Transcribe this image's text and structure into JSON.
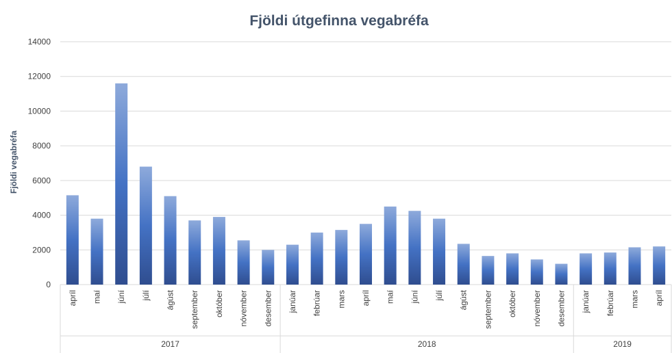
{
  "chart_data": {
    "type": "bar",
    "title": "Fjöldi útgefinna vegabréfa",
    "xlabel": "",
    "ylabel": "Fjöldi vegabréfa",
    "ylim": [
      0,
      14000
    ],
    "yticks": [
      0,
      2000,
      4000,
      6000,
      8000,
      10000,
      12000,
      14000
    ],
    "grid": true,
    "legend": "none",
    "colors": {
      "bar_top": "#8eaadb",
      "bar_mid": "#4472c4",
      "bar_bottom": "#2f4d8f"
    },
    "categories": [
      "apríl",
      "maí",
      "júní",
      "júlí",
      "ágúst",
      "september",
      "október",
      "nóvember",
      "desember",
      "janúar",
      "febrúar",
      "mars",
      "apríl",
      "maí",
      "júní",
      "júlí",
      "ágúst",
      "september",
      "október",
      "nóvember",
      "desember",
      "janúar",
      "febrúar",
      "mars",
      "apríl"
    ],
    "values": [
      5150,
      3800,
      11600,
      6800,
      5100,
      3700,
      3900,
      2550,
      2000,
      2300,
      3000,
      3150,
      3500,
      4500,
      4250,
      3800,
      2350,
      1650,
      1800,
      1450,
      1200,
      1800,
      1850,
      2150,
      2200
    ],
    "groups": [
      {
        "label": "2017",
        "count": 9
      },
      {
        "label": "2018",
        "count": 12
      },
      {
        "label": "2019",
        "count": 4
      }
    ]
  }
}
